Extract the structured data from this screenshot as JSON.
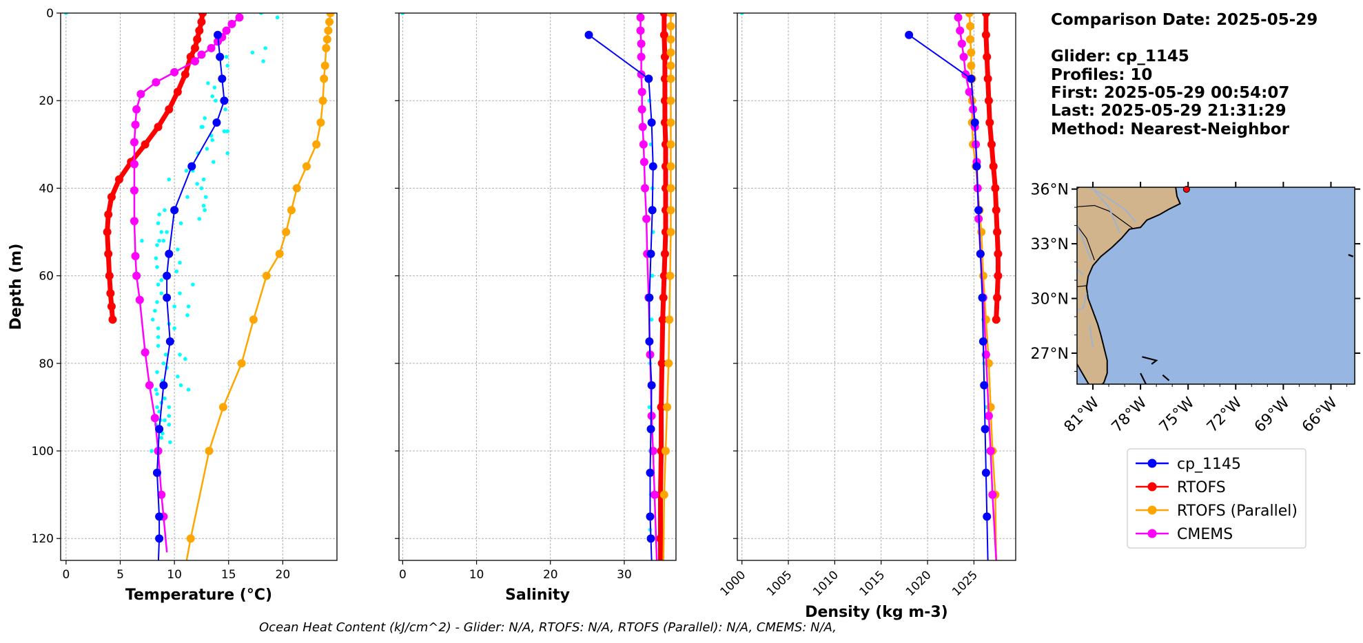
{
  "info": {
    "comparison": "Comparison Date: 2025-05-29",
    "glider": "Glider: cp_1145",
    "profiles": "Profiles: 10",
    "first": "First: 2025-05-29 00:54:07",
    "last": "Last: 2025-05-29 21:31:29",
    "method": "Method: Nearest-Neighbor"
  },
  "footer": "Ocean Heat Content (kJ/cm^2) - Glider: N/A,  RTOFS: N/A,  RTOFS (Parallel): N/A,  CMEMS: N/A,",
  "legend": [
    "cp_1145",
    "RTOFS",
    "RTOFS (Parallel)",
    "CMEMS"
  ],
  "colors": {
    "glider": "#0000ff",
    "rtofs": "#ff0000",
    "parallel": "#ffa500",
    "cmems": "#ff00ff",
    "raw": "#00ffff",
    "land": "#d2b48c",
    "ocean": "#97b6e1",
    "grid": "#b0b0b0"
  },
  "map": {
    "lat_labels": [
      "36°N",
      "33°N",
      "30°N",
      "27°N"
    ],
    "lon_labels": [
      "81°W",
      "78°W",
      "75°W",
      "72°W",
      "69°W",
      "66°W"
    ],
    "lat_values": [
      36,
      33,
      30,
      27
    ],
    "lon_values": [
      -81,
      -78,
      -75,
      -72,
      -69,
      -66
    ],
    "lon_range": [
      -82,
      -64.5
    ],
    "lat_range": [
      25.3,
      36.1
    ],
    "marker": {
      "lon": -75.1,
      "lat": 36.0
    }
  },
  "chart_data": [
    {
      "type": "line",
      "xlabel": "Temperature (°C)",
      "ylabel": "Depth (m)",
      "xlim": [
        -0.5,
        25
      ],
      "ylim": [
        125,
        0
      ],
      "xticks": [
        0,
        5,
        10,
        15,
        20
      ],
      "yticks": [
        0,
        20,
        40,
        60,
        80,
        100,
        120
      ],
      "grid": true,
      "series": [
        {
          "name": "RTOFS",
          "key": "rtofs",
          "x": [
            12.6,
            12.5,
            12.3,
            12.1,
            11.9,
            11.5,
            11.0,
            10.3,
            9.5,
            8.5,
            7.3,
            6.0,
            4.9,
            4.2,
            3.9,
            3.8,
            3.9,
            4.0,
            4.1,
            4.2,
            4.3
          ],
          "y": [
            0,
            2,
            4,
            6,
            8,
            10,
            14,
            18,
            22,
            26,
            30,
            34,
            38,
            42,
            46,
            50,
            55,
            60,
            64,
            67,
            70
          ]
        },
        {
          "name": "RTOFS (Parallel)",
          "key": "parallel",
          "x": [
            24.4,
            24.3,
            24.2,
            24.1,
            24.0,
            23.9,
            23.8,
            23.7,
            23.5,
            23.1,
            22.2,
            21.3,
            20.8,
            20.3,
            19.7,
            18.5,
            17.3,
            16.2,
            14.5,
            13.2,
            11.5,
            10.0
          ],
          "y": [
            0,
            2,
            4,
            6,
            8,
            12,
            15,
            20,
            25,
            30,
            35,
            40,
            45,
            50,
            55,
            60,
            70,
            80,
            90,
            100,
            120,
            140
          ]
        },
        {
          "name": "CMEMS",
          "key": "cmems",
          "x": [
            16.0,
            15.3,
            14.8,
            14.4,
            14.0,
            13.4,
            12.5,
            11.9,
            10.0,
            8.3,
            6.9,
            6.5,
            6.4,
            6.3,
            6.3,
            6.3,
            6.3,
            6.4,
            6.5,
            6.8,
            7.3,
            7.7,
            8.2,
            8.5,
            8.8,
            9.0,
            9.3
          ],
          "y": [
            1,
            2.5,
            4,
            5.5,
            6.5,
            8,
            9.5,
            11,
            13.5,
            15.8,
            18.5,
            22,
            25.5,
            29.5,
            34.5,
            40.5,
            47.5,
            55.5,
            60,
            65.5,
            77.5,
            85,
            92.5,
            100,
            110,
            115,
            123
          ]
        },
        {
          "name": "cp_1145",
          "key": "glider",
          "x": [
            14.0,
            14.2,
            14.4,
            14.6,
            13.9,
            11.6,
            10.0,
            9.5,
            9.3,
            9.3,
            9.6,
            9.0,
            8.6,
            8.4,
            8.6,
            8.6,
            8.3
          ],
          "y": [
            5,
            10,
            15,
            20,
            25,
            35,
            45,
            55,
            60,
            65,
            75,
            85,
            95,
            105,
            115,
            120,
            140
          ]
        }
      ],
      "markers": {
        "rtofs": [
          12.6,
          12.5,
          12.3,
          12.1,
          11.9,
          11.5,
          11.0,
          10.3,
          9.5,
          8.5,
          7.3,
          6.0,
          4.9,
          4.2,
          3.9,
          3.8,
          3.9,
          4.0,
          4.1,
          4.2,
          4.3
        ],
        "parallel_y": [
          0,
          2,
          4,
          6,
          8,
          12,
          15,
          20,
          25,
          30,
          35,
          40,
          45,
          50,
          60,
          70,
          80,
          90,
          100
        ],
        "cmems_y": [
          1,
          2.5,
          4,
          5.5,
          6.5,
          8,
          9.5,
          11,
          13.5,
          15.8,
          18.5,
          22,
          25.5,
          29.5,
          34.5,
          40.5,
          47.5,
          55.5,
          65.5,
          77.5,
          92.5,
          105,
          110
        ],
        "glider_y": [
          5,
          15,
          25,
          35,
          45,
          55,
          65,
          75,
          85,
          95,
          105,
          115
        ]
      },
      "raw": {
        "x": [
          0,
          18,
          19.5,
          17.2,
          18.4,
          18.2,
          14.8,
          14.9,
          13.1,
          13.7,
          13.5,
          13.8,
          14.7,
          12.8,
          12.6,
          12.5,
          13.4,
          14.9,
          13.5,
          14.6,
          13.0,
          14.9,
          12.2,
          13.6,
          11.1,
          11.7,
          9.5,
          12.7,
          12.1,
          12.5,
          12.9,
          11.2,
          12.7,
          12.8,
          9.1,
          12.3,
          8.6,
          10.6,
          8.5,
          9.3,
          8.8,
          8.6,
          9.0,
          7.0,
          8.4,
          10.3,
          9.5,
          8.3,
          10.5,
          8.4,
          10.2,
          8.8,
          11.7,
          8.5,
          10.5,
          8.8,
          8.4,
          11.3,
          10.0,
          8.2,
          11.2,
          8.0,
          9.5,
          8.5,
          10.0,
          8.5,
          8.5,
          9.2,
          10.5,
          11.0,
          9.0,
          9.3,
          8.4,
          10.3,
          8.9,
          10.6,
          8.3,
          11.3,
          8.4,
          9.1,
          8.8,
          8.4,
          9.5,
          8.6,
          9.5,
          8.7,
          9.1,
          8.3,
          9.5,
          8.5,
          8.9,
          8.8,
          9.6,
          7.9
        ],
        "y": [
          0,
          0,
          1,
          9,
          8,
          11,
          10,
          12,
          16,
          17,
          19,
          20,
          22,
          24,
          26,
          26,
          28,
          27,
          29,
          27,
          31,
          32,
          32,
          34,
          36,
          36,
          38,
          38,
          39,
          40,
          42,
          42,
          44,
          45,
          45,
          47,
          46,
          48,
          48,
          50,
          50,
          52,
          52,
          52,
          53,
          54,
          55,
          56,
          57,
          58,
          59,
          61,
          62,
          62,
          64,
          64,
          66,
          67,
          67,
          68,
          69,
          70,
          71,
          72,
          72,
          74,
          76,
          78,
          78,
          79,
          80,
          81,
          82,
          83,
          84,
          85,
          86,
          86,
          87,
          88,
          89,
          90,
          90,
          91,
          92,
          93,
          93,
          94,
          94,
          95,
          96,
          97,
          98,
          100
        ]
      }
    },
    {
      "type": "line",
      "xlabel": "Salinity",
      "ylabel": "",
      "xlim": [
        -0.5,
        37
      ],
      "ylim": [
        125,
        0
      ],
      "xticks": [
        0,
        10,
        20,
        30
      ],
      "grid": true,
      "series": [
        {
          "name": "RTOFS",
          "key": "rtofs",
          "x": [
            35.4,
            35.4,
            35.5,
            35.5,
            35.5,
            35.5,
            35.6,
            35.6,
            35.6,
            35.6,
            35.6,
            35.5,
            35.4,
            35.3,
            35.2,
            35.1,
            35.0,
            35.0,
            34.9,
            34.9,
            34.9
          ],
          "y": [
            0,
            5,
            10,
            15,
            20,
            25,
            30,
            35,
            40,
            45,
            50,
            55,
            60,
            65,
            70,
            80,
            90,
            100,
            110,
            120,
            125
          ]
        },
        {
          "name": "RTOFS (Parallel)",
          "key": "parallel",
          "x": [
            36.3,
            36.3,
            36.3,
            36.3,
            36.3,
            36.3,
            36.3,
            36.3,
            36.3,
            36.3,
            36.3,
            36.3,
            36.3,
            36.2,
            36.1,
            36.0,
            35.8,
            35.6,
            35.4,
            35.3
          ],
          "y": [
            0,
            3,
            6,
            9,
            12,
            15,
            20,
            25,
            30,
            35,
            40,
            45,
            50,
            60,
            70,
            80,
            90,
            100,
            110,
            125
          ]
        },
        {
          "name": "CMEMS",
          "key": "cmems",
          "x": [
            32.2,
            32.2,
            32.3,
            32.3,
            32.3,
            32.4,
            32.4,
            32.5,
            32.6,
            32.7,
            32.8,
            33.0,
            33.1,
            33.3,
            33.5,
            33.7,
            33.9,
            34.1,
            34.4
          ],
          "y": [
            1,
            4,
            7,
            10,
            14,
            18,
            22,
            26,
            30,
            34,
            40,
            47,
            55,
            65,
            78,
            92,
            100,
            110,
            125
          ]
        },
        {
          "name": "cp_1145",
          "key": "glider",
          "x": [
            25.2,
            33.3,
            33.7,
            33.9,
            33.8,
            33.6,
            33.4,
            33.4,
            33.7,
            33.6,
            33.5,
            33.5,
            33.6,
            33.7
          ],
          "y": [
            5,
            15,
            25,
            35,
            45,
            55,
            65,
            75,
            85,
            95,
            105,
            115,
            120,
            125
          ]
        }
      ],
      "raw": {
        "x": [
          0,
          33.4,
          33.6,
          33.8,
          33.9,
          33.8,
          33.7,
          33.5,
          33.4,
          33.5,
          33.6,
          33.5
        ],
        "y": [
          0,
          20,
          30,
          40,
          50,
          60,
          70,
          80,
          90,
          100,
          110,
          118
        ]
      }
    },
    {
      "type": "line",
      "xlabel": "Density (kg m-3)",
      "ylabel": "",
      "xlim": [
        999.5,
        1029.5
      ],
      "ylim": [
        125,
        0
      ],
      "xticks": [
        1000,
        1005,
        1010,
        1015,
        1020,
        1025
      ],
      "grid": true,
      "series": [
        {
          "name": "RTOFS",
          "key": "rtofs",
          "x": [
            1026.3,
            1026.3,
            1026.4,
            1026.5,
            1026.6,
            1026.7,
            1026.9,
            1027.1,
            1027.3,
            1027.4,
            1027.5,
            1027.6,
            1027.6,
            1027.5,
            1027.4
          ],
          "y": [
            0,
            5,
            10,
            15,
            20,
            25,
            30,
            35,
            40,
            45,
            50,
            55,
            60,
            65,
            70
          ]
        },
        {
          "name": "RTOFS (Parallel)",
          "key": "parallel",
          "x": [
            1024.5,
            1024.6,
            1024.6,
            1024.7,
            1024.7,
            1024.8,
            1024.8,
            1024.8,
            1024.9,
            1025.2,
            1025.4,
            1025.6,
            1025.8,
            1026.0,
            1026.3,
            1026.6,
            1026.8,
            1027.0,
            1027.3,
            1027.4
          ],
          "y": [
            0,
            3,
            6,
            9,
            12,
            15,
            20,
            25,
            30,
            35,
            40,
            45,
            50,
            60,
            70,
            80,
            90,
            100,
            110,
            125
          ]
        },
        {
          "name": "CMEMS",
          "key": "cmems",
          "x": [
            1023.3,
            1023.5,
            1023.7,
            1023.9,
            1024.1,
            1024.5,
            1024.9,
            1025.1,
            1025.2,
            1025.3,
            1025.4,
            1025.5,
            1025.7,
            1026.0,
            1026.3,
            1026.6,
            1026.8,
            1027.0,
            1027.4
          ],
          "y": [
            1,
            4,
            7,
            10,
            14,
            18,
            22,
            26,
            30,
            34,
            40,
            47,
            55,
            65,
            78,
            92,
            100,
            110,
            125
          ]
        },
        {
          "name": "cp_1145",
          "key": "glider",
          "x": [
            1018.0,
            1024.7,
            1025.1,
            1025.3,
            1025.5,
            1025.7,
            1025.9,
            1026.0,
            1026.1,
            1026.2,
            1026.3,
            1026.4,
            1026.5
          ],
          "y": [
            5,
            15,
            25,
            35,
            45,
            55,
            65,
            75,
            85,
            95,
            105,
            115,
            125
          ]
        }
      ],
      "raw": {
        "x": [
          1000,
          1024.9,
          1025.2,
          1025.4,
          1025.6,
          1025.8,
          1026.0,
          1026.1,
          1026.3,
          1026.4
        ],
        "y": [
          0,
          20,
          30,
          40,
          50,
          60,
          70,
          80,
          90,
          100
        ]
      }
    }
  ]
}
